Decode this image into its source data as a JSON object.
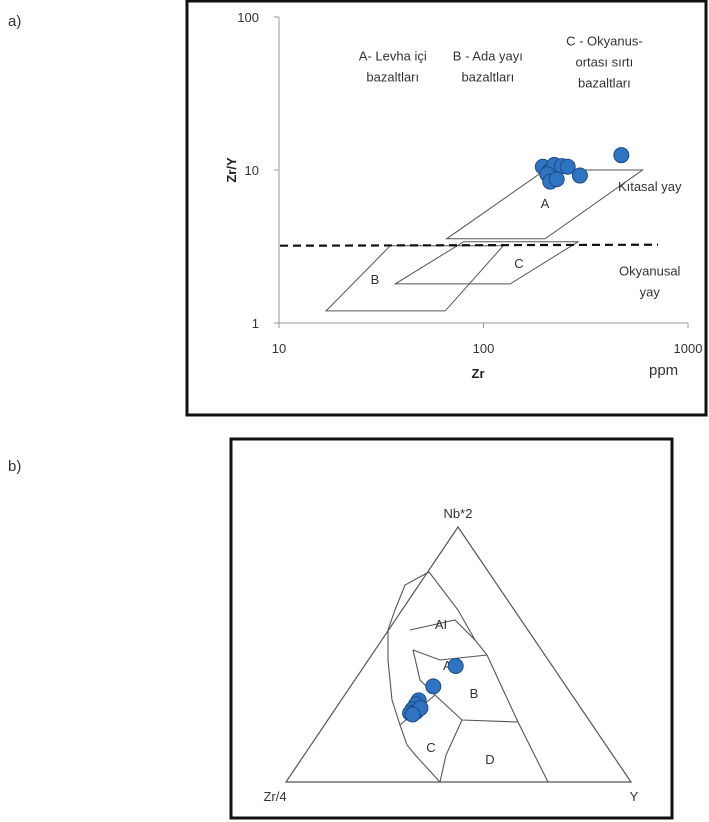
{
  "panels": {
    "a": "a)",
    "b": "b)"
  },
  "chart_data": [
    {
      "type": "scatter",
      "scale": "log-log",
      "xlabel": "Zr",
      "ylabel": "Zr/Y",
      "unit": "ppm",
      "xlim": [
        10,
        1000
      ],
      "ylim": [
        1,
        100
      ],
      "xticks": [
        "10",
        "100",
        "1000"
      ],
      "yticks": [
        "1",
        "10",
        "100"
      ],
      "fields": [
        {
          "id": "A",
          "label": "A",
          "polygon": [
            [
              66,
              3.55
            ],
            [
              200,
              3.55
            ],
            [
              600,
              10
            ],
            [
              200,
              10
            ]
          ]
        },
        {
          "id": "B",
          "label": "B",
          "polygon": [
            [
              17,
              1.2
            ],
            [
              65,
              1.2
            ],
            [
              125,
              3.2
            ],
            [
              35,
              3.2
            ]
          ]
        },
        {
          "id": "C",
          "label": "C",
          "polygon": [
            [
              37,
              1.8
            ],
            [
              135,
              1.8
            ],
            [
              290,
              3.4
            ],
            [
              80,
              3.4
            ]
          ]
        }
      ],
      "divider": {
        "y": 3.2,
        "style": "dashed"
      },
      "annotations": [
        {
          "lines": [
            "A- Levha içi",
            "bazaltları"
          ],
          "x": 36,
          "y": 52
        },
        {
          "lines": [
            "B - Ada yayı",
            "bazaltları"
          ],
          "x": 105,
          "y": 52
        },
        {
          "lines": [
            "C - Okyanus-",
            "ortası sırtı",
            "bazaltları"
          ],
          "x": 390,
          "y": 65
        },
        {
          "lines": [
            "Kıtasal yay"
          ],
          "x": 650,
          "y": 7.3
        },
        {
          "lines": [
            "Okyanusal",
            "yay"
          ],
          "x": 650,
          "y": 2.05
        }
      ],
      "points": [
        [
          195,
          10.5
        ],
        [
          210,
          9.8
        ],
        [
          222,
          10.8
        ],
        [
          242,
          10.6
        ],
        [
          258,
          10.5
        ],
        [
          205,
          9.4
        ],
        [
          212,
          8.4
        ],
        [
          228,
          8.7
        ],
        [
          296,
          9.2
        ],
        [
          472,
          12.5
        ]
      ]
    },
    {
      "type": "ternary",
      "vertices": {
        "top": "Nb*2",
        "left": "Zr/4",
        "right": "Y"
      },
      "field_labels": [
        "AI",
        "AII",
        "B",
        "C",
        "D"
      ],
      "points": [
        [
          0.455,
          0.28,
          0.265
        ],
        [
          0.375,
          0.385,
          0.24
        ],
        [
          0.32,
          0.455,
          0.225
        ],
        [
          0.305,
          0.47,
          0.225
        ],
        [
          0.285,
          0.49,
          0.225
        ],
        [
          0.27,
          0.505,
          0.225
        ],
        [
          0.275,
          0.485,
          0.24
        ],
        [
          0.29,
          0.465,
          0.245
        ],
        [
          0.265,
          0.5,
          0.235
        ]
      ]
    }
  ]
}
